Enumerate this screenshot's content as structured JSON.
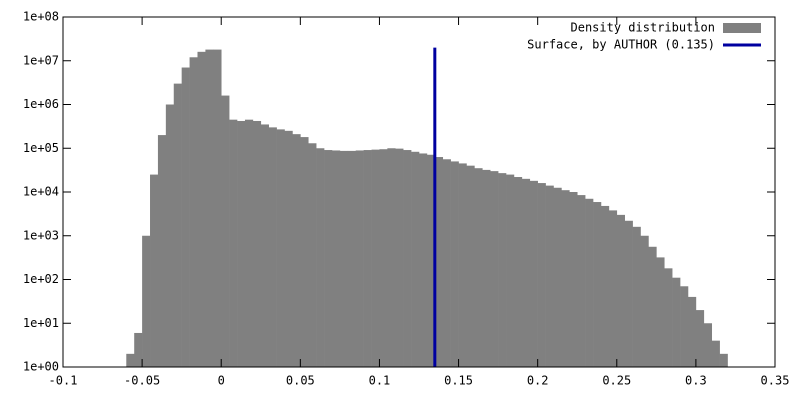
{
  "chart_data": {
    "type": "histogram",
    "log_y": true,
    "legend": "upper right",
    "xlim": [
      -0.1,
      0.35
    ],
    "ylim": [
      1,
      100000000
    ],
    "xticks": [
      -0.1,
      -0.05,
      0,
      0.05,
      0.1,
      0.15,
      0.2,
      0.25,
      0.3,
      0.35
    ],
    "yticks": [
      {
        "value": 1,
        "label": "1e+00"
      },
      {
        "value": 10,
        "label": "1e+01"
      },
      {
        "value": 100,
        "label": "1e+02"
      },
      {
        "value": 1000,
        "label": "1e+03"
      },
      {
        "value": 10000,
        "label": "1e+04"
      },
      {
        "value": 100000,
        "label": "1e+05"
      },
      {
        "value": 1000000,
        "label": "1e+06"
      },
      {
        "value": 10000000,
        "label": "1e+07"
      },
      {
        "value": 100000000,
        "label": "1e+08"
      }
    ],
    "bins": [
      -0.06,
      -0.055,
      -0.05,
      -0.045,
      -0.04,
      -0.035,
      -0.03,
      -0.025,
      -0.02,
      -0.015,
      -0.01,
      -0.005,
      0,
      0.005,
      0.01,
      0.015,
      0.02,
      0.025,
      0.03,
      0.035,
      0.04,
      0.045,
      0.05,
      0.055,
      0.06,
      0.065,
      0.07,
      0.075,
      0.08,
      0.085,
      0.09,
      0.095,
      0.1,
      0.105,
      0.11,
      0.115,
      0.12,
      0.125,
      0.13,
      0.135,
      0.14,
      0.145,
      0.15,
      0.155,
      0.16,
      0.165,
      0.17,
      0.175,
      0.18,
      0.185,
      0.19,
      0.195,
      0.2,
      0.205,
      0.21,
      0.215,
      0.22,
      0.225,
      0.23,
      0.235,
      0.24,
      0.245,
      0.25,
      0.255,
      0.26,
      0.265,
      0.27,
      0.275,
      0.28,
      0.285,
      0.29,
      0.295,
      0.3,
      0.305,
      0.31,
      0.315,
      0.32
    ],
    "series": [
      {
        "name": "Density distribution",
        "color": "#808080",
        "values": [
          2,
          6,
          1000,
          25000,
          200000,
          1000000,
          3000000,
          7000000,
          12000000,
          16000000,
          18000000,
          18000000,
          1600000,
          450000,
          420000,
          450000,
          420000,
          350000,
          300000,
          270000,
          250000,
          210000,
          180000,
          130000,
          100000,
          91000,
          89000,
          87000,
          87000,
          89000,
          91000,
          93000,
          95000,
          100000,
          98000,
          91000,
          83000,
          76000,
          71000,
          63000,
          56000,
          50000,
          45000,
          40000,
          35000,
          32000,
          30000,
          27000,
          25000,
          22000,
          20000,
          18000,
          16000,
          14000,
          12500,
          11000,
          10000,
          8500,
          7000,
          5900,
          4800,
          3800,
          3000,
          2200,
          1600,
          1000,
          560,
          320,
          180,
          110,
          70,
          40,
          20,
          10,
          4,
          2
        ]
      }
    ],
    "vline": {
      "name": "Surface, by AUTHOR (0.135)",
      "x": 0.135,
      "top": 20000000,
      "color": "#0000a0"
    }
  }
}
